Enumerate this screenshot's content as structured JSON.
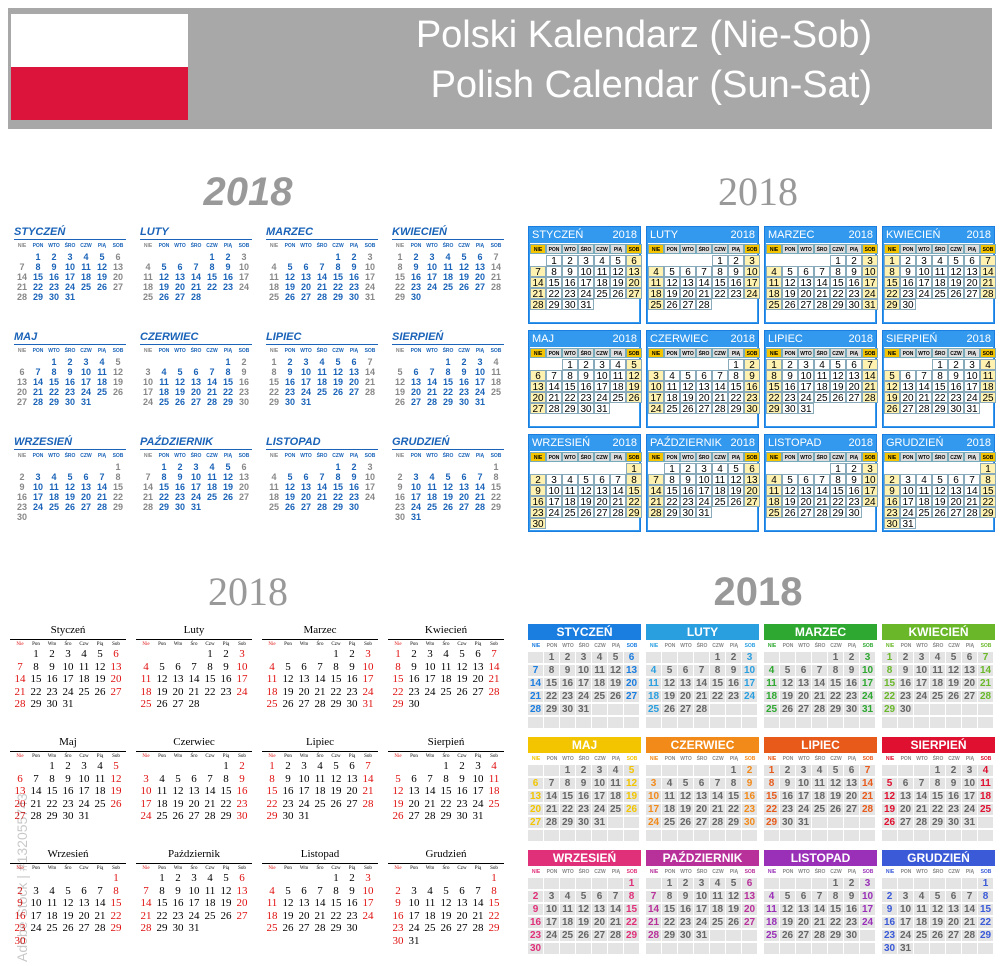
{
  "header": {
    "title_pl": "Polski Kalendarz (Nie-Sob)",
    "title_en": "Polish Calendar (Sun-Sat)"
  },
  "watermark": "Adobe Stock | #132055743",
  "year": "2018",
  "weekdays_upper": [
    "NIE",
    "PON",
    "WTO",
    "ŚRO",
    "CZW",
    "PIĄ",
    "SOB"
  ],
  "weekdays_title": [
    "Nie",
    "Pon",
    "Wto",
    "Śro",
    "Czw",
    "Pią",
    "Sob"
  ],
  "months_upper": [
    "STYCZEŃ",
    "LUTY",
    "MARZEC",
    "KWIECIEŃ",
    "MAJ",
    "CZERWIEC",
    "LIPIEC",
    "SIERPIEŃ",
    "WRZESIEŃ",
    "PAŹDZIERNIK",
    "LISTOPAD",
    "GRUDZIEŃ"
  ],
  "months_title": [
    "Styczeń",
    "Luty",
    "Marzec",
    "Kwiecień",
    "Maj",
    "Czerwiec",
    "Lipiec",
    "Sierpień",
    "Wrzesień",
    "Październik",
    "Listopad",
    "Grudzień"
  ],
  "month_start_weekday": [
    1,
    4,
    4,
    0,
    2,
    5,
    0,
    3,
    6,
    1,
    4,
    6
  ],
  "month_days": [
    31,
    28,
    31,
    30,
    31,
    30,
    31,
    31,
    30,
    31,
    30,
    31
  ],
  "colors": {
    "flag_white": "#ffffff",
    "flag_red": "#dc143c",
    "header_bg": "#a8a8a8",
    "blue": "#1a63b8",
    "sunday_red": "#e01010",
    "panel_blue": "#3399ee",
    "weekend_yellow": "#f5c400",
    "month_band_colors": [
      "#1a7de0",
      "#2a9fe0",
      "#2ea830",
      "#6ab82a",
      "#f2c500",
      "#f28a1a",
      "#e85a1a",
      "#e01030",
      "#e0307a",
      "#b8309a",
      "#9a30b8",
      "#3a5ad8"
    ]
  }
}
